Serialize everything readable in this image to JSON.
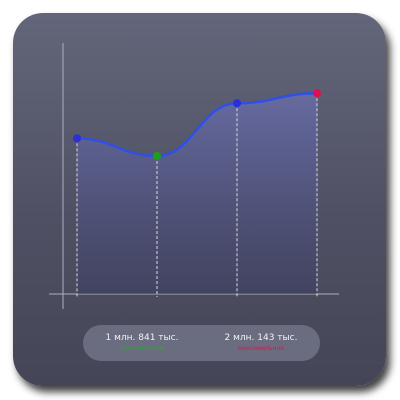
{
  "chart_data": {
    "type": "area",
    "x": [
      1,
      2,
      3,
      4
    ],
    "values": [
      0.62,
      0.55,
      0.76,
      0.8
    ],
    "point_colors": [
      "#2a2fd8",
      "#1aa01a",
      "#2a2fd8",
      "#e0104a"
    ],
    "line_color": "#2f4fe6",
    "fill_color": "#5a5f9a",
    "grid": false,
    "xlabel": "",
    "ylabel": ""
  },
  "summary": {
    "min": {
      "value": "1 млн. 841 тыс.",
      "caption": "минимальное",
      "color": "#23b023"
    },
    "max": {
      "value": "2 млн. 143 тыс.",
      "caption": "максимальное",
      "color": "#e0104a"
    }
  }
}
